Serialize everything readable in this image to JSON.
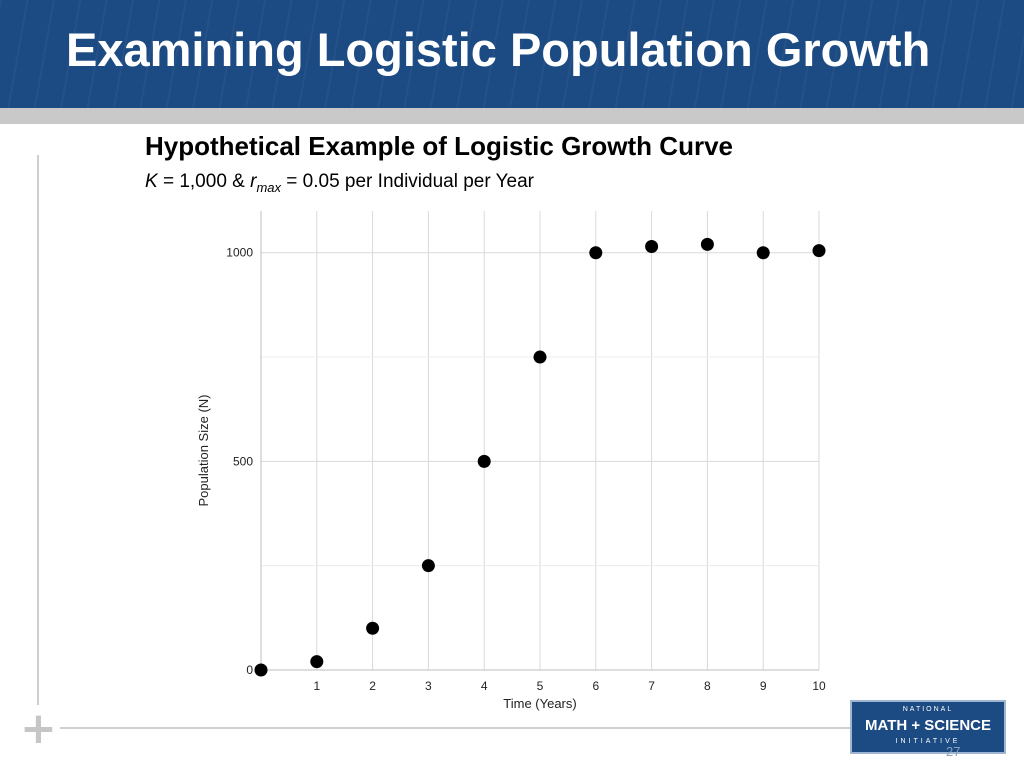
{
  "slide": {
    "title": "Examining Logistic Population Growth",
    "slide_number": "27",
    "logo": {
      "top": "NATIONAL",
      "main": "MATH + SCIENCE",
      "bottom": "INITIATIVE"
    },
    "colors": {
      "title_bar": "#1c4a82",
      "divider": "#c9c9c9",
      "marker": "#000000"
    }
  },
  "chart_data": {
    "type": "scatter",
    "title": "Hypothetical Example of Logistic Growth Curve",
    "subtitle": {
      "k_symbol": "K",
      "k_part": " = 1,000 & ",
      "r_symbol": "r",
      "r_subscript": "max",
      "r_part": " = 0.05 per Individual  per Year"
    },
    "xlabel": "Time (Years)",
    "ylabel": "Population Size (N)",
    "xlim": [
      0,
      10
    ],
    "ylim": [
      0,
      1100
    ],
    "x_ticks": [
      1,
      2,
      3,
      4,
      5,
      6,
      7,
      8,
      9,
      10
    ],
    "y_ticks": [
      0,
      500,
      1000
    ],
    "grid": true,
    "series": [
      {
        "x": [
          0,
          1,
          2,
          3,
          4,
          5,
          6,
          7,
          8,
          9,
          10
        ],
        "y": [
          0,
          20,
          100,
          250,
          500,
          750,
          1000,
          1015,
          1020,
          1000,
          1005
        ]
      }
    ]
  }
}
